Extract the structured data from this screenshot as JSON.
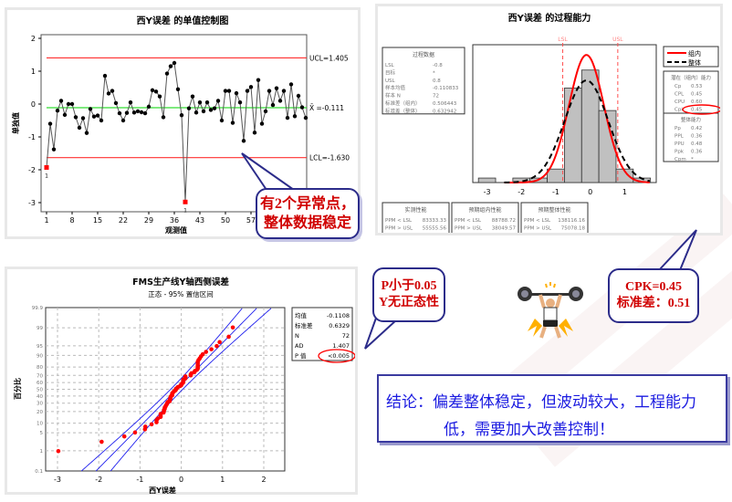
{
  "chart_data": [
    {
      "type": "line",
      "title": "西Y误差 的单值控制图",
      "xlabel": "观测值",
      "ylabel": "单独值",
      "x_ticks": [
        1,
        8,
        15,
        22,
        29,
        36,
        43,
        50,
        57,
        64,
        71
      ],
      "y_ticks": [
        -3,
        -2,
        -1,
        0,
        1,
        2
      ],
      "ylim": [
        -3.2,
        2.1
      ],
      "values": [
        -1.93,
        -0.6,
        -1.38,
        -0.2,
        0.1,
        -0.33,
        0.0,
        0.0,
        -0.4,
        -0.72,
        -0.43,
        -0.88,
        -0.15,
        -0.38,
        -0.35,
        -0.5,
        0.86,
        0.32,
        0.4,
        0.03,
        -0.28,
        -0.5,
        -0.27,
        0.05,
        -0.26,
        -0.22,
        -0.25,
        -0.28,
        -0.08,
        0.42,
        0.38,
        0.23,
        -0.4,
        0.93,
        1.15,
        1.25,
        0.45,
        -0.34,
        -2.98,
        -0.13,
        0.23,
        -0.26,
        0.05,
        -0.22,
        0.05,
        -0.18,
        -0.13,
        0.1,
        -0.5,
        0.4,
        0.4,
        -0.57,
        0.33,
        0.05,
        -1.12,
        0.4,
        0.52,
        -0.87,
        0.73,
        -0.6,
        -0.22,
        0.4,
        -0.03,
        0.48,
        0.1,
        0.4,
        -0.42,
        0.6,
        -0.37,
        0.25,
        -0.1,
        -0.42
      ],
      "out_of_control_points": [
        1,
        39
      ],
      "out_of_control_label": "1",
      "ucl": 1.405,
      "center": -0.111,
      "lcl": -1.63,
      "ucl_label": "UCL=1.405",
      "center_label": "X̄ =-0.111",
      "lcl_label": "LCL=-1.630",
      "colors": {
        "limits": "#ff3030",
        "center": "#33dd33",
        "points": "#000000",
        "flagged": "#ff0000"
      }
    },
    {
      "type": "bar",
      "title": "西Y误差 的过程能力",
      "bin_edges": [
        -3.25,
        -2.75,
        -2.25,
        -1.75,
        -1.25,
        -0.75,
        -0.25,
        0.25,
        0.75,
        1.25,
        1.75
      ],
      "counts": [
        1,
        0,
        1,
        1,
        3,
        21,
        25,
        16,
        3,
        1
      ],
      "x_ticks": [
        -3,
        -2,
        -1,
        0,
        1
      ],
      "lsl": -0.8,
      "usl": 0.8,
      "lsl_label": "LSL",
      "usl_label": "USL",
      "mean": -0.110833,
      "sd_within": 0.506443,
      "sd_overall": 0.632942,
      "n": 72,
      "legend": [
        {
          "name": "组内",
          "style": "solid",
          "color": "#ff0000"
        },
        {
          "name": "整体",
          "style": "dashed",
          "color": "#000000"
        }
      ],
      "process_data": {
        "title": "过程数据",
        "rows": [
          [
            "LSL",
            "-0.8"
          ],
          [
            "目标",
            "*"
          ],
          [
            "USL",
            "0.8"
          ],
          [
            "样本均值",
            "-0.110833"
          ],
          [
            "样本 N",
            "72"
          ],
          [
            "标准差（组内）",
            "0.506443"
          ],
          [
            "标准差（整体）",
            "0.632942"
          ]
        ]
      },
      "potential": {
        "title": "潜在（组内）能力",
        "rows": [
          [
            "Cp",
            "0.53"
          ],
          [
            "CPL",
            "0.45"
          ],
          [
            "CPU",
            "0.60"
          ],
          [
            "Cpk",
            "0.45"
          ]
        ]
      },
      "overall": {
        "title": "整体能力",
        "rows": [
          [
            "Pp",
            "0.42"
          ],
          [
            "PPL",
            "0.36"
          ],
          [
            "PPU",
            "0.48"
          ],
          [
            "Ppk",
            "0.36"
          ],
          [
            "Cpm",
            "*"
          ]
        ]
      },
      "ppm_tables": [
        {
          "title": "实测性能",
          "rows": [
            [
              "PPM < LSL",
              "83333.33"
            ],
            [
              "PPM > USL",
              "55555.56"
            ],
            [
              "PPM 合计",
              "138888.89"
            ]
          ]
        },
        {
          "title": "预期组内性能",
          "rows": [
            [
              "PPM < LSL",
              "88788.72"
            ],
            [
              "PPM > USL",
              "38049.57"
            ],
            [
              "PPM 合计",
              "126838.29"
            ]
          ]
        },
        {
          "title": "预期整体性能",
          "rows": [
            [
              "PPM < LSL",
              "138116.16"
            ],
            [
              "PPM > USL",
              "75078.18"
            ],
            [
              "PPM 合计",
              "213194.34"
            ]
          ]
        }
      ]
    },
    {
      "type": "scatter",
      "title": "FMS生产线Y轴西侧误差",
      "subtitle": "正态 - 95% 置信区间",
      "xlabel": "西Y误差",
      "ylabel": "百分比",
      "x_ticks": [
        -3,
        -2,
        -1,
        0,
        1,
        2
      ],
      "y_ticks": [
        0.1,
        1,
        5,
        10,
        20,
        30,
        40,
        50,
        60,
        70,
        80,
        90,
        95,
        99,
        99.9
      ],
      "y_scale": "normal-probability",
      "stats": [
        [
          "均值",
          "-0.1108"
        ],
        [
          "标准差",
          "0.6329"
        ],
        [
          "N",
          "72"
        ],
        [
          "AD",
          "1.407"
        ],
        [
          "P 值",
          "<0.005"
        ]
      ],
      "colors": {
        "points": "#ff0000",
        "fit": "#2020ee"
      }
    }
  ],
  "callouts": {
    "outliers": [
      "有2个异常点，",
      "整体数据稳定"
    ],
    "normality": [
      "P小于0.05",
      "Y无正态性"
    ],
    "cpk": [
      "CPK=0.45",
      "标准差：0.51"
    ]
  },
  "conclusion": {
    "line1": "结论：偏差整体稳定，但波动较大，工程能力",
    "line2": "低，需要加大改善控制！"
  }
}
